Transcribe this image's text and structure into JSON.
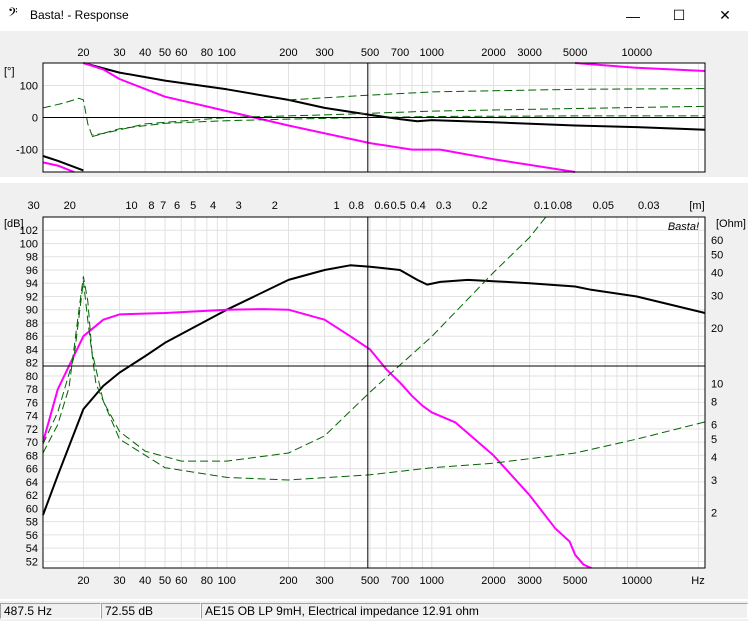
{
  "window": {
    "title": "Basta! - Response",
    "icon": "bass-clef-icon",
    "minimize_glyph": "—",
    "maximize_glyph": "☐",
    "close_glyph": "✕"
  },
  "watermark": "Basta!",
  "status": {
    "frequency": "487.5 Hz",
    "level": "72.55 dB",
    "description": "AE15 OB LP 9mH, Electrical impedance 12.91 ohm"
  },
  "colors": {
    "black_curve": "#000000",
    "magenta_curve": "#ff00ff",
    "green_dashed": "#006400"
  },
  "chart_data": [
    {
      "type": "line",
      "name": "phase",
      "x_scale": "log",
      "xlim": [
        12.7,
        21500
      ],
      "ylim": [
        -170,
        170
      ],
      "ylabel": "[°]",
      "yticks": [
        100,
        0,
        -100
      ],
      "xticks": [
        20,
        30,
        40,
        50,
        60,
        80,
        100,
        200,
        300,
        500,
        700,
        1000,
        2000,
        3000,
        5000,
        10000
      ],
      "xtick_labels": [
        "20",
        "30",
        "40",
        "50",
        "60",
        "80",
        "100",
        "200",
        "300",
        "500",
        "700",
        "1000",
        "2000",
        "3000",
        "5000",
        "10000"
      ],
      "cursor_x": 487.5,
      "cursor_y": 0,
      "series": [
        {
          "color": "black",
          "style": "solid",
          "points": [
            [
              20,
              170
            ],
            [
              30,
              140
            ],
            [
              50,
              115
            ],
            [
              100,
              88
            ],
            [
              200,
              55
            ],
            [
              300,
              30
            ],
            [
              500,
              8
            ],
            [
              700,
              -5
            ],
            [
              850,
              -12
            ],
            [
              1000,
              -8
            ],
            [
              2000,
              -15
            ],
            [
              5000,
              -25
            ],
            [
              10000,
              -30
            ],
            [
              21500,
              -38
            ]
          ]
        },
        {
          "color": "black",
          "style": "solid",
          "points": [
            [
              12.7,
              -120
            ],
            [
              15,
              -135
            ],
            [
              20,
              -165
            ]
          ]
        },
        {
          "color": "magenta",
          "style": "solid",
          "points": [
            [
              20,
              170
            ],
            [
              25,
              150
            ],
            [
              30,
              120
            ],
            [
              50,
              65
            ],
            [
              100,
              20
            ],
            [
              200,
              -25
            ],
            [
              500,
              -80
            ],
            [
              800,
              -100
            ],
            [
              1100,
              -100
            ],
            [
              2000,
              -130
            ],
            [
              5000,
              -170
            ]
          ]
        },
        {
          "color": "magenta",
          "style": "solid",
          "points": [
            [
              5000,
              170
            ],
            [
              10000,
              155
            ],
            [
              21500,
              145
            ]
          ]
        },
        {
          "color": "magenta",
          "style": "solid",
          "points": [
            [
              12.7,
              -140
            ],
            [
              15,
              -150
            ],
            [
              18,
              -170
            ]
          ]
        },
        {
          "color": "green",
          "style": "dashed",
          "points": [
            [
              12.7,
              30
            ],
            [
              16,
              45
            ],
            [
              19,
              60
            ],
            [
              20,
              55
            ],
            [
              21,
              -20
            ],
            [
              22,
              -55
            ],
            [
              25,
              -50
            ],
            [
              40,
              -20
            ],
            [
              100,
              0
            ],
            [
              300,
              8
            ],
            [
              1000,
              20
            ],
            [
              5000,
              28
            ],
            [
              21500,
              35
            ]
          ]
        },
        {
          "color": "green",
          "style": "dashed",
          "points": [
            [
              22,
              -60
            ],
            [
              30,
              -35
            ],
            [
              50,
              -18
            ],
            [
              100,
              -10
            ],
            [
              200,
              -5
            ],
            [
              500,
              0
            ],
            [
              1000,
              3
            ],
            [
              5000,
              5
            ],
            [
              21500,
              5
            ]
          ]
        },
        {
          "color": "green",
          "style": "dashed",
          "points": [
            [
              200,
              55
            ],
            [
              500,
              70
            ],
            [
              1000,
              80
            ],
            [
              5000,
              88
            ],
            [
              21500,
              90
            ]
          ]
        }
      ]
    },
    {
      "type": "line",
      "name": "spl",
      "x_scale": "log",
      "xlim": [
        12.7,
        21500
      ],
      "ylim": [
        51,
        104
      ],
      "ylabel": "[dB]",
      "y2label": "[Ohm]",
      "yticks": [
        52,
        54,
        56,
        58,
        60,
        62,
        64,
        66,
        68,
        70,
        72,
        74,
        76,
        78,
        80,
        82,
        84,
        86,
        88,
        90,
        92,
        94,
        96,
        98,
        100,
        102
      ],
      "y2_scale": "log",
      "y2lim": [
        1.0,
        80
      ],
      "y2ticks": [
        2,
        3,
        4,
        5,
        6,
        8,
        10,
        20,
        30,
        40,
        50,
        60
      ],
      "xticks": [
        20,
        30,
        40,
        50,
        60,
        80,
        100,
        200,
        300,
        500,
        700,
        1000,
        2000,
        3000,
        5000,
        10000
      ],
      "xtick_labels": [
        "20",
        "30",
        "40",
        "50",
        "60",
        "80",
        "100",
        "200",
        "300",
        "500",
        "700",
        "1000",
        "2000",
        "3000",
        "5000",
        "10000"
      ],
      "x_unit": "Hz",
      "top_axis_unit": "[m]",
      "top_axis": [
        {
          "f": 11.43,
          "label": "30"
        },
        {
          "f": 17.15,
          "label": "20"
        },
        {
          "f": 34.3,
          "label": "10"
        },
        {
          "f": 42.9,
          "label": "8"
        },
        {
          "f": 49.0,
          "label": "7"
        },
        {
          "f": 57.2,
          "label": "6"
        },
        {
          "f": 68.6,
          "label": "5"
        },
        {
          "f": 85.8,
          "label": "4"
        },
        {
          "f": 114.3,
          "label": "3"
        },
        {
          "f": 171.5,
          "label": "2"
        },
        {
          "f": 343,
          "label": "1"
        },
        {
          "f": 428.8,
          "label": "0.8"
        },
        {
          "f": 571.7,
          "label": "0.6"
        },
        {
          "f": 686,
          "label": "0.5"
        },
        {
          "f": 857.5,
          "label": "0.4"
        },
        {
          "f": 1143,
          "label": "0.3"
        },
        {
          "f": 1715,
          "label": "0.2"
        },
        {
          "f": 3430,
          "label": "0.1"
        },
        {
          "f": 4288,
          "label": "0.08"
        },
        {
          "f": 6860,
          "label": "0.05"
        },
        {
          "f": 11433,
          "label": "0.03"
        }
      ],
      "cursor_x": 487.5,
      "cursor_y": 81.5,
      "series": [
        {
          "color": "black",
          "style": "solid",
          "axis": "db",
          "points": [
            [
              12.7,
              59
            ],
            [
              15,
              65
            ],
            [
              20,
              75
            ],
            [
              25,
              78.5
            ],
            [
              30,
              80.5
            ],
            [
              40,
              83
            ],
            [
              50,
              85
            ],
            [
              100,
              90
            ],
            [
              200,
              94.5
            ],
            [
              300,
              96
            ],
            [
              400,
              96.7
            ],
            [
              500,
              96.5
            ],
            [
              700,
              96
            ],
            [
              850,
              94.5
            ],
            [
              950,
              93.8
            ],
            [
              1100,
              94.2
            ],
            [
              1500,
              94.5
            ],
            [
              2000,
              94.3
            ],
            [
              3000,
              94
            ],
            [
              5000,
              93.5
            ],
            [
              6000,
              93
            ],
            [
              10000,
              92
            ],
            [
              21500,
              89.5
            ]
          ]
        },
        {
          "color": "magenta",
          "style": "solid",
          "axis": "db",
          "points": [
            [
              12.7,
              70
            ],
            [
              15,
              78
            ],
            [
              20,
              86
            ],
            [
              25,
              88.5
            ],
            [
              30,
              89.3
            ],
            [
              50,
              89.5
            ],
            [
              100,
              90
            ],
            [
              150,
              90.1
            ],
            [
              200,
              90
            ],
            [
              300,
              88.5
            ],
            [
              400,
              86
            ],
            [
              500,
              84
            ],
            [
              600,
              81
            ],
            [
              700,
              79
            ],
            [
              800,
              77
            ],
            [
              900,
              75.5
            ],
            [
              1000,
              74.5
            ],
            [
              1300,
              73
            ],
            [
              2000,
              68
            ],
            [
              3000,
              62
            ],
            [
              4000,
              57
            ],
            [
              4700,
              55
            ],
            [
              5000,
              53
            ],
            [
              5500,
              51.5
            ],
            [
              6000,
              51
            ]
          ]
        },
        {
          "color": "green",
          "style": "dashed",
          "axis": "ohm",
          "points": [
            [
              12.7,
              4.2
            ],
            [
              15,
              6
            ],
            [
              17,
              9.5
            ],
            [
              19,
              25
            ],
            [
              20,
              38
            ],
            [
              21,
              28
            ],
            [
              22,
              15
            ],
            [
              25,
              8
            ],
            [
              30,
              5.5
            ],
            [
              40,
              4.3
            ],
            [
              60,
              3.8
            ],
            [
              100,
              3.8
            ],
            [
              200,
              4.2
            ],
            [
              300,
              5.2
            ],
            [
              500,
              9
            ],
            [
              1000,
              18
            ],
            [
              2000,
              40
            ],
            [
              3000,
              62
            ],
            [
              3600,
              80
            ]
          ]
        },
        {
          "color": "green",
          "style": "dashed",
          "axis": "ohm",
          "points": [
            [
              12.7,
              4.7
            ],
            [
              15,
              7
            ],
            [
              18,
              14
            ],
            [
              20,
              36
            ],
            [
              21,
              22
            ],
            [
              23,
              10
            ],
            [
              30,
              5
            ],
            [
              50,
              3.5
            ],
            [
              100,
              3.1
            ],
            [
              200,
              3.0
            ],
            [
              500,
              3.2
            ],
            [
              1000,
              3.5
            ],
            [
              2000,
              3.7
            ],
            [
              5000,
              4.2
            ],
            [
              10000,
              5
            ],
            [
              21500,
              6.2
            ]
          ]
        }
      ]
    }
  ]
}
